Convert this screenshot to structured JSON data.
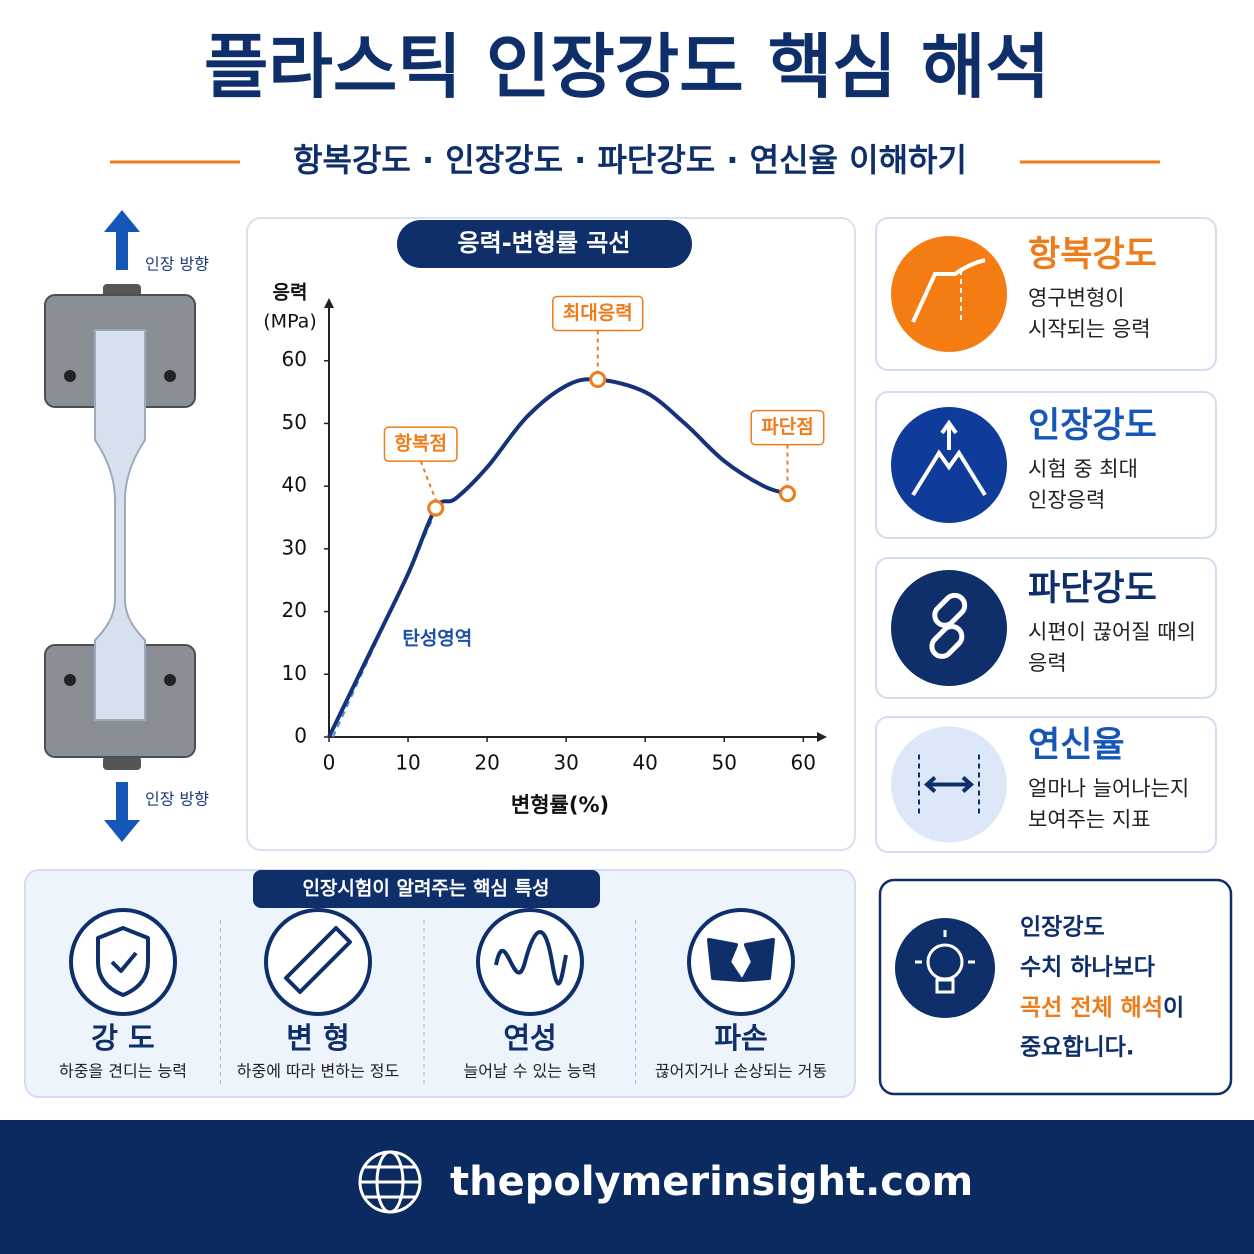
{
  "header": {
    "title": "플라스틱 인장강도 핵심 해석",
    "subtitle": "항복강도 · 인장강도 · 파단강도 · 연신율 이해하기"
  },
  "specimen": {
    "top_label": "인장 방향",
    "bottom_label": "인장 방향"
  },
  "chart_data": {
    "type": "line",
    "title": "응력-변형률 곡선",
    "y_label": "응력",
    "y_unit": "(MPa)",
    "x_label": "변형률(%)",
    "x": [
      0,
      5,
      10,
      13.5,
      16,
      20,
      25,
      30,
      34,
      40,
      45,
      50,
      55,
      58
    ],
    "values": [
      0,
      13,
      26,
      36.5,
      38,
      43,
      51,
      56,
      57,
      55,
      50,
      44,
      40,
      38.8
    ],
    "color": "#15337a",
    "xlim": [
      0,
      63
    ],
    "ylim": [
      0,
      70
    ],
    "xticks": [
      0,
      10,
      20,
      30,
      40,
      50,
      60
    ],
    "yticks": [
      0,
      10,
      20,
      30,
      40,
      50,
      60
    ],
    "annotations": [
      {
        "text": "항복점",
        "x": 13.5,
        "y": 36.5
      },
      {
        "text": "최대응력",
        "x": 34,
        "y": 57
      },
      {
        "text": "파단점",
        "x": 58,
        "y": 38.8
      }
    ],
    "elastic": {
      "label": "탄성영역",
      "x": [
        0.5,
        13
      ],
      "y": [
        0,
        34.5
      ]
    }
  },
  "cards": [
    {
      "title": "항복강도",
      "lines": [
        "영구변형이",
        "시작되는 응력"
      ]
    },
    {
      "title": "인장강도",
      "lines": [
        "시험 중 최대",
        "인장응력"
      ]
    },
    {
      "title": "파단강도",
      "lines": [
        "시편이 끊어질 때의",
        "응력"
      ]
    },
    {
      "title": "연신율",
      "lines": [
        "얼마나 늘어나는지",
        "보여주는 지표"
      ]
    }
  ],
  "properties": {
    "title": "인장시험이 알려주는 핵심 특성",
    "items": [
      {
        "label": "강 도",
        "desc": "하중을 견디는 능력"
      },
      {
        "label": "변 형",
        "desc": "하중에 따라 변하는 정도"
      },
      {
        "label": "연성",
        "desc": "늘어날 수 있는 능력"
      },
      {
        "label": "파손",
        "desc": "끊어지거나 손상되는 거동"
      }
    ]
  },
  "note": {
    "line1": "인장강도",
    "line2": "수치 하나보다",
    "highlight": "곡선 전체 해석",
    "line3_rest": "이",
    "line4": "중요합니다."
  },
  "footer": {
    "url": "thepolymerinsight.com"
  }
}
